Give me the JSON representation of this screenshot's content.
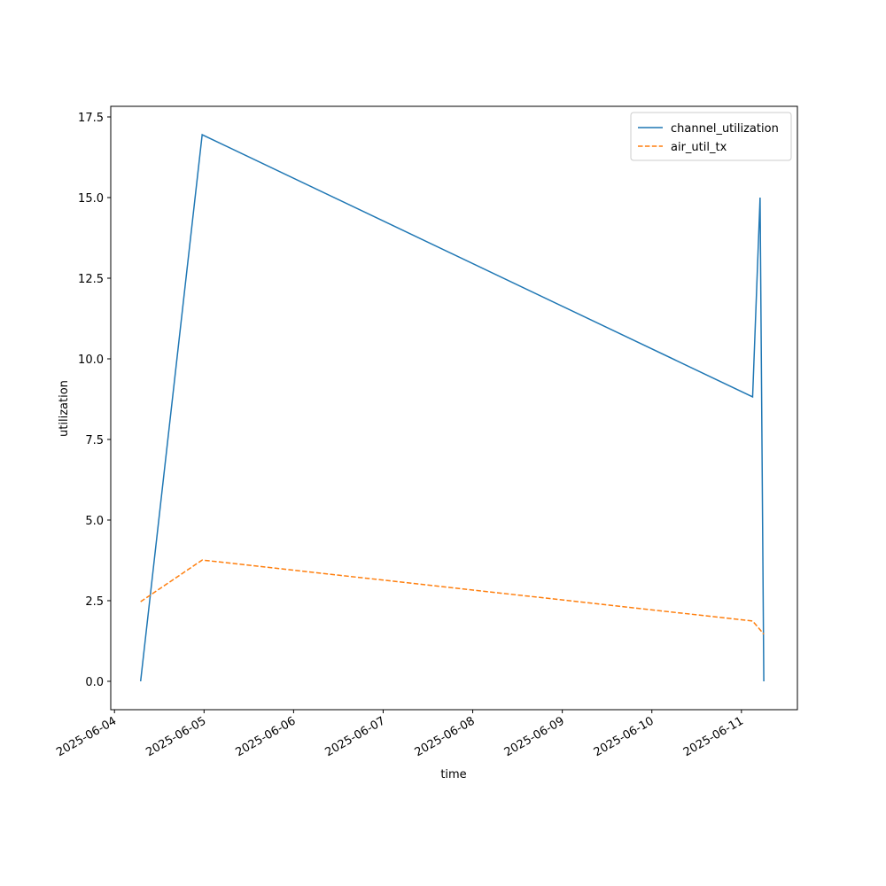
{
  "chart_data": {
    "type": "line",
    "x_label": "time",
    "y_label": "utilization",
    "x": [
      "2025-06-04T07:00",
      "2025-06-04T23:30",
      "2025-06-11T03:00",
      "2025-06-11T05:00",
      "2025-06-11T06:00"
    ],
    "series": [
      {
        "name": "channel_utilization",
        "color": "#1f77b4",
        "dash": "solid",
        "values": [
          0,
          16.95,
          8.82,
          15.0,
          0
        ]
      },
      {
        "name": "air_util_tx",
        "color": "#ff7f0e",
        "dash": "dashed",
        "values": [
          2.47,
          3.76,
          1.87,
          1.6,
          1.46
        ]
      }
    ],
    "xlim": [
      "2025-06-03T23:00",
      "2025-06-11T15:00"
    ],
    "xticks": [
      "2025-06-04",
      "2025-06-05",
      "2025-06-06",
      "2025-06-07",
      "2025-06-08",
      "2025-06-09",
      "2025-06-10",
      "2025-06-11"
    ],
    "ylim": [
      -0.88,
      17.83
    ],
    "yticks": [
      {
        "value": 0,
        "label": "0.0"
      },
      2.5,
      {
        "value": 5,
        "label": "5.0"
      },
      7.5,
      {
        "value": 10,
        "label": "10.0"
      },
      12.5,
      {
        "value": 15,
        "label": "15.0"
      },
      17.5
    ],
    "grid": false,
    "legend": "upper right"
  }
}
